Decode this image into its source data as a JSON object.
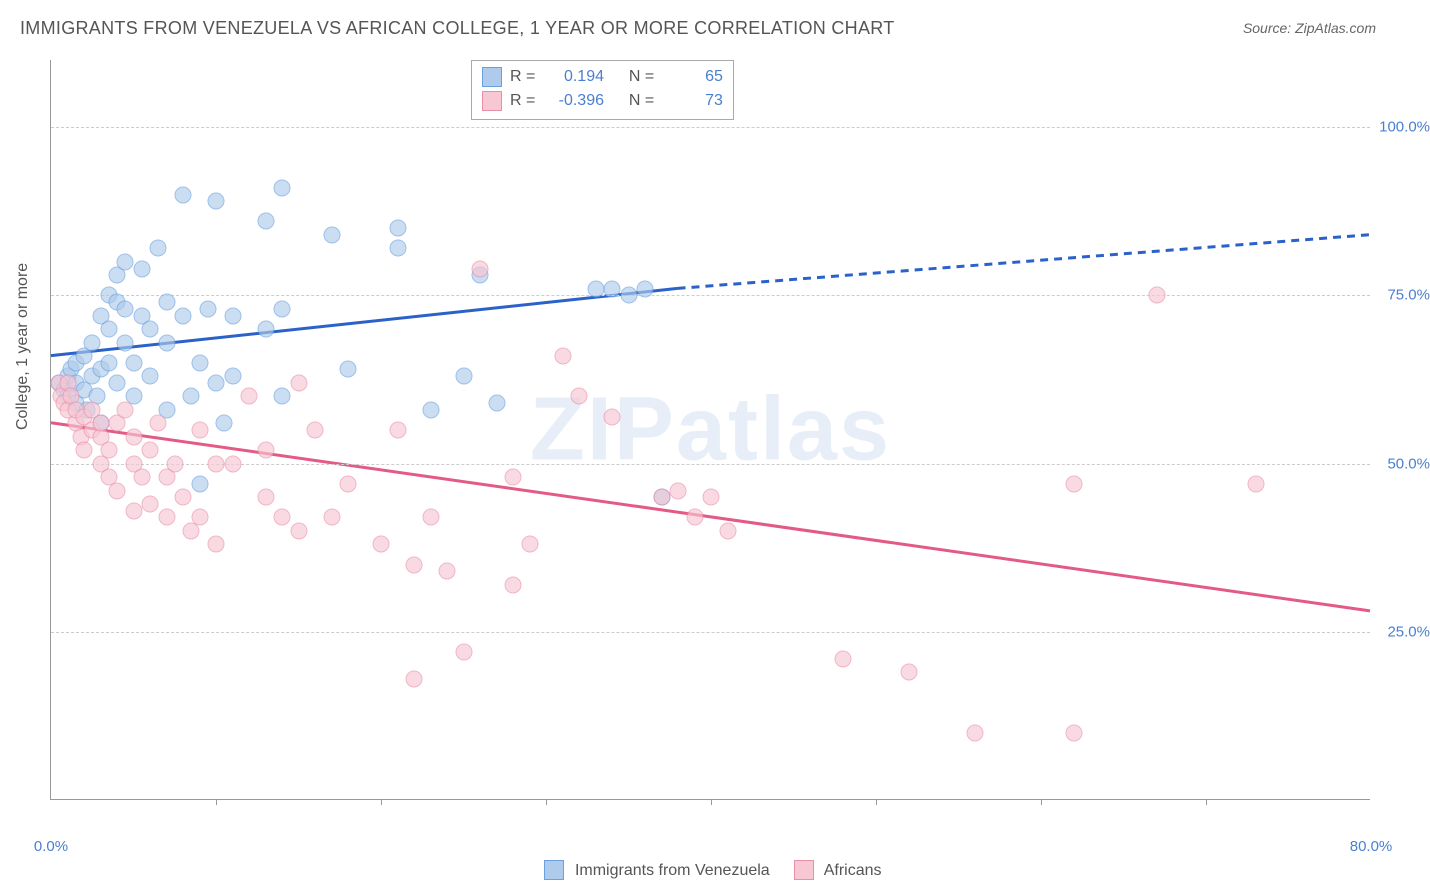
{
  "title": "IMMIGRANTS FROM VENEZUELA VS AFRICAN COLLEGE, 1 YEAR OR MORE CORRELATION CHART",
  "source": "Source: ZipAtlas.com",
  "watermark": "ZIPatlas",
  "ylabel": "College, 1 year or more",
  "chart": {
    "type": "scatter",
    "xlim": [
      0,
      80
    ],
    "ylim": [
      0,
      110
    ],
    "xticks_minor": [
      10,
      20,
      30,
      40,
      50,
      60,
      70
    ],
    "xticks_label": [
      {
        "pos": 0,
        "label": "0.0%"
      },
      {
        "pos": 80,
        "label": "80.0%"
      }
    ],
    "yticks": [
      {
        "pos": 25,
        "label": "25.0%"
      },
      {
        "pos": 50,
        "label": "50.0%"
      },
      {
        "pos": 75,
        "label": "75.0%"
      },
      {
        "pos": 100,
        "label": "100.0%"
      }
    ],
    "background_color": "#ffffff",
    "grid_color": "#cccccc",
    "marker_size": 17,
    "marker_opacity": 0.65
  },
  "series": [
    {
      "name": "Immigrants from Venezuela",
      "key": "venezuela",
      "fill_color": "#aecbeb",
      "stroke_color": "#6a9fe0",
      "line_color": "#2a62c9",
      "r_value": "0.194",
      "n_value": "65",
      "trend_solid": {
        "x1": 0,
        "y1": 66,
        "x2": 38,
        "y2": 76
      },
      "trend_dashed": {
        "x1": 38,
        "y1": 76,
        "x2": 80,
        "y2": 84
      },
      "points": [
        [
          0.5,
          62
        ],
        [
          0.8,
          61
        ],
        [
          1.0,
          63
        ],
        [
          1.0,
          60
        ],
        [
          1.2,
          64
        ],
        [
          1.5,
          62
        ],
        [
          1.5,
          65
        ],
        [
          1.5,
          59
        ],
        [
          2.0,
          61
        ],
        [
          2.0,
          66
        ],
        [
          2.2,
          58
        ],
        [
          2.5,
          63
        ],
        [
          2.5,
          68
        ],
        [
          2.8,
          60
        ],
        [
          3.0,
          64
        ],
        [
          3.0,
          72
        ],
        [
          3.0,
          56
        ],
        [
          3.5,
          70
        ],
        [
          3.5,
          65
        ],
        [
          3.5,
          75
        ],
        [
          4.0,
          62
        ],
        [
          4.0,
          74
        ],
        [
          4.0,
          78
        ],
        [
          4.5,
          73
        ],
        [
          4.5,
          68
        ],
        [
          4.5,
          80
        ],
        [
          5.0,
          60
        ],
        [
          5.0,
          65
        ],
        [
          5.5,
          72
        ],
        [
          5.5,
          79
        ],
        [
          6.0,
          63
        ],
        [
          6.0,
          70
        ],
        [
          6.5,
          82
        ],
        [
          7.0,
          74
        ],
        [
          7.0,
          58
        ],
        [
          7.0,
          68
        ],
        [
          8.0,
          90
        ],
        [
          8.0,
          72
        ],
        [
          8.5,
          60
        ],
        [
          9.0,
          65
        ],
        [
          9.0,
          47
        ],
        [
          9.5,
          73
        ],
        [
          10.0,
          89
        ],
        [
          10.0,
          62
        ],
        [
          10.5,
          56
        ],
        [
          11.0,
          72
        ],
        [
          11.0,
          63
        ],
        [
          13.0,
          70
        ],
        [
          13.0,
          86
        ],
        [
          14.0,
          91
        ],
        [
          14.0,
          73
        ],
        [
          14.0,
          60
        ],
        [
          17.0,
          84
        ],
        [
          18.0,
          64
        ],
        [
          21.0,
          82
        ],
        [
          21.0,
          85
        ],
        [
          23.0,
          58
        ],
        [
          25.0,
          63
        ],
        [
          26.0,
          78
        ],
        [
          27.0,
          59
        ],
        [
          33.0,
          76
        ],
        [
          34.0,
          76
        ],
        [
          35.0,
          75
        ],
        [
          36.0,
          76
        ],
        [
          37.0,
          45
        ]
      ]
    },
    {
      "name": "Africans",
      "key": "africans",
      "fill_color": "#f7c7d4",
      "stroke_color": "#e98fa9",
      "line_color": "#e35a84",
      "r_value": "-0.396",
      "n_value": "73",
      "trend_solid": {
        "x1": 0,
        "y1": 56,
        "x2": 80,
        "y2": 28
      },
      "trend_dashed": null,
      "points": [
        [
          0.5,
          62
        ],
        [
          0.6,
          60
        ],
        [
          0.8,
          59
        ],
        [
          1.0,
          62
        ],
        [
          1.0,
          58
        ],
        [
          1.2,
          60
        ],
        [
          1.5,
          56
        ],
        [
          1.5,
          58
        ],
        [
          1.8,
          54
        ],
        [
          2.0,
          57
        ],
        [
          2.0,
          52
        ],
        [
          2.5,
          55
        ],
        [
          2.5,
          58
        ],
        [
          3.0,
          54
        ],
        [
          3.0,
          50
        ],
        [
          3.0,
          56
        ],
        [
          3.5,
          52
        ],
        [
          3.5,
          48
        ],
        [
          4.0,
          56
        ],
        [
          4.0,
          46
        ],
        [
          4.5,
          58
        ],
        [
          5.0,
          50
        ],
        [
          5.0,
          54
        ],
        [
          5.0,
          43
        ],
        [
          5.5,
          48
        ],
        [
          6.0,
          52
        ],
        [
          6.0,
          44
        ],
        [
          6.5,
          56
        ],
        [
          7.0,
          48
        ],
        [
          7.0,
          42
        ],
        [
          7.5,
          50
        ],
        [
          8.0,
          45
        ],
        [
          8.5,
          40
        ],
        [
          9.0,
          55
        ],
        [
          9.0,
          42
        ],
        [
          10.0,
          50
        ],
        [
          10.0,
          38
        ],
        [
          11.0,
          50
        ],
        [
          12.0,
          60
        ],
        [
          13.0,
          45
        ],
        [
          13.0,
          52
        ],
        [
          14.0,
          42
        ],
        [
          15.0,
          62
        ],
        [
          15.0,
          40
        ],
        [
          16.0,
          55
        ],
        [
          17.0,
          42
        ],
        [
          18.0,
          47
        ],
        [
          20.0,
          38
        ],
        [
          21.0,
          55
        ],
        [
          22.0,
          18
        ],
        [
          22.0,
          35
        ],
        [
          23.0,
          42
        ],
        [
          24.0,
          34
        ],
        [
          25.0,
          22
        ],
        [
          26.0,
          79
        ],
        [
          28.0,
          48
        ],
        [
          28.0,
          32
        ],
        [
          29.0,
          38
        ],
        [
          31.0,
          66
        ],
        [
          32.0,
          60
        ],
        [
          34.0,
          57
        ],
        [
          37.0,
          45
        ],
        [
          38.0,
          46
        ],
        [
          39.0,
          42
        ],
        [
          40.0,
          45
        ],
        [
          41.0,
          40
        ],
        [
          48.0,
          21
        ],
        [
          52.0,
          19
        ],
        [
          56.0,
          10
        ],
        [
          62.0,
          47
        ],
        [
          62.0,
          10
        ],
        [
          67.0,
          75
        ],
        [
          73.0,
          47
        ]
      ]
    }
  ],
  "stats_box": {
    "r_label": "R =",
    "n_label": "N ="
  },
  "legend": {
    "venezuela_label": "Immigrants from Venezuela",
    "africans_label": "Africans"
  }
}
